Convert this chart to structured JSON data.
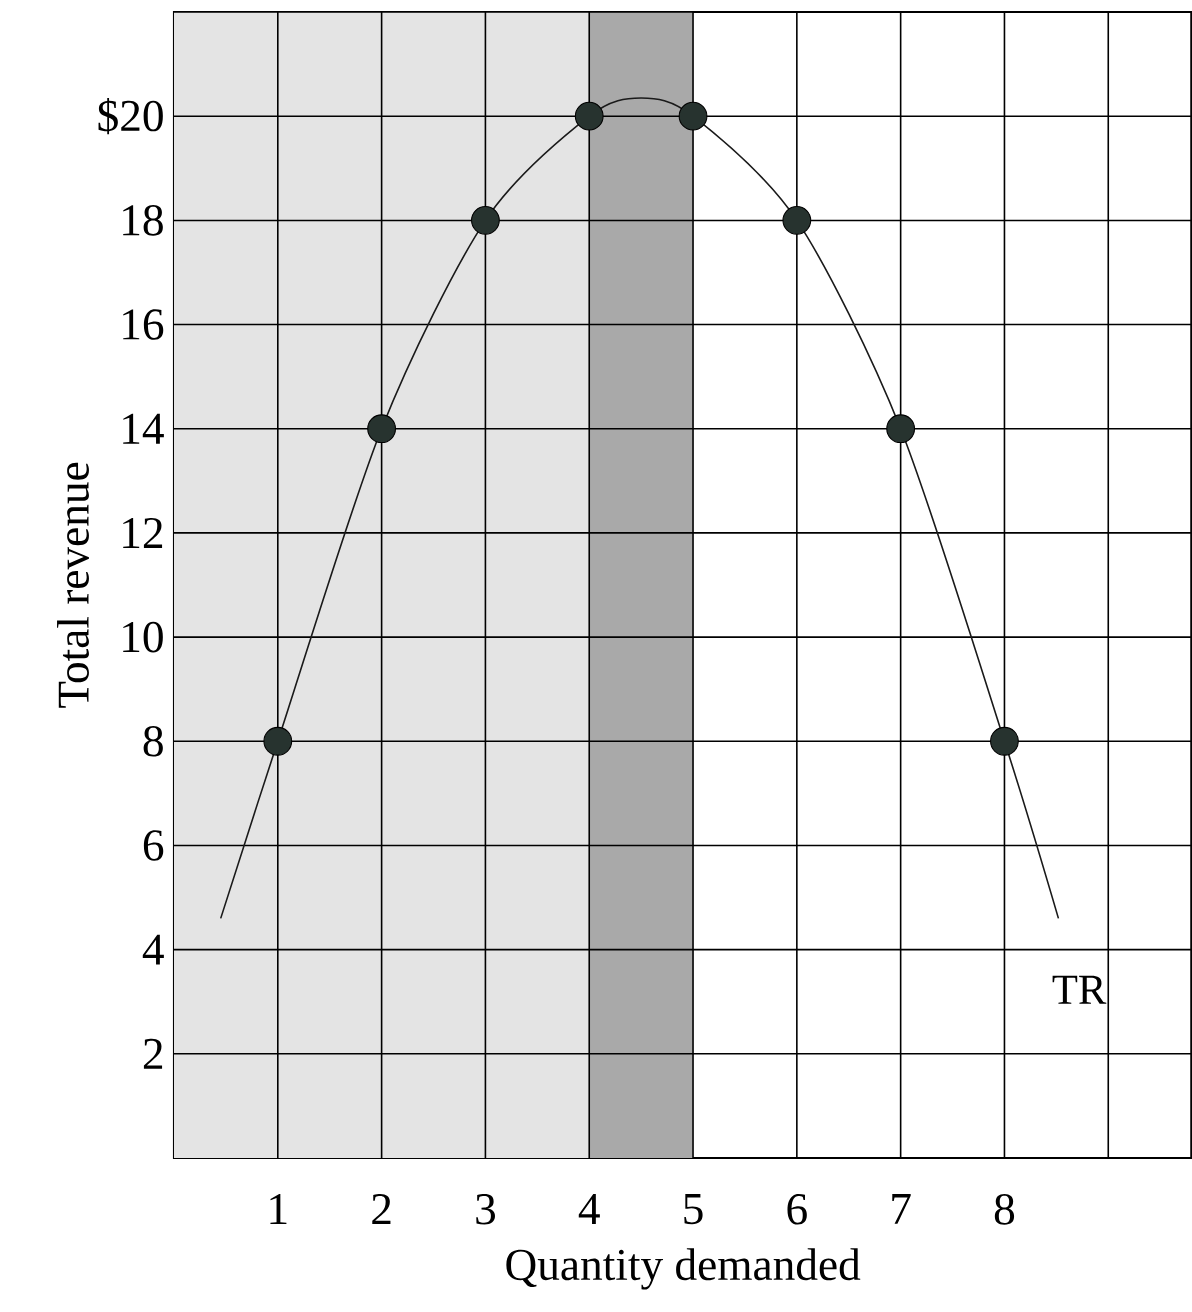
{
  "chart_data": {
    "type": "line",
    "xlabel": "Quantity demanded",
    "ylabel": "Total revenue",
    "xlim": [
      0,
      9.8
    ],
    "ylim": [
      0,
      22
    ],
    "xticks": [
      1,
      2,
      3,
      4,
      5,
      6,
      7,
      8,
      {
        "value": 9,
        "label": null
      }
    ],
    "yticks": [
      2,
      4,
      6,
      8,
      10,
      12,
      14,
      16,
      18,
      {
        "value": 20,
        "label": "$20"
      },
      {
        "value": 22,
        "label": null
      }
    ],
    "grid": true,
    "bands": [
      {
        "axis": "x",
        "from": 0,
        "to": 4,
        "color": "#e4e4e4"
      },
      {
        "axis": "x",
        "from": 4,
        "to": 5,
        "color": "#a9a9a9"
      }
    ],
    "series": [
      {
        "name": "TR",
        "color": "#1a1a1a",
        "marker": "none",
        "x": [
          0.45,
          1,
          2,
          3,
          4,
          4.5,
          5,
          6,
          7,
          8,
          8.52
        ],
        "values": [
          4.6,
          8,
          14,
          18,
          20,
          20.35,
          20,
          18,
          14,
          8,
          4.6
        ]
      },
      {
        "type": "scatter",
        "color": "#27332f",
        "marker": "circle",
        "x": [
          1,
          2,
          3,
          4,
          5,
          6,
          7,
          8
        ],
        "values": [
          8,
          14,
          18,
          20,
          20,
          18,
          14,
          8
        ]
      }
    ]
  }
}
